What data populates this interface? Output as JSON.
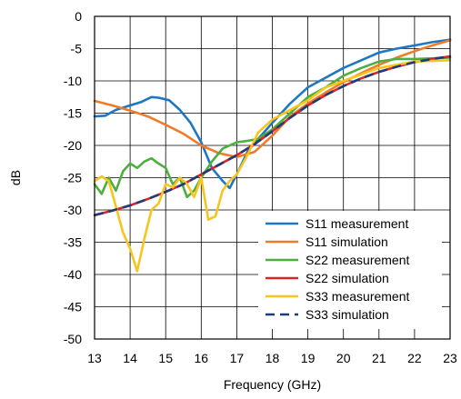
{
  "chart_data": {
    "type": "line",
    "title": "",
    "xlabel": "Frequency (GHz)",
    "ylabel": "dB",
    "xlim": [
      13,
      23
    ],
    "ylim": [
      -50,
      0
    ],
    "xticks": [
      "13",
      "14",
      "15",
      "16",
      "17",
      "18",
      "19",
      "20",
      "21",
      "22",
      "23"
    ],
    "yticks": [
      "0",
      "-5",
      "-10",
      "-15",
      "-20",
      "-25",
      "-30",
      "-35",
      "-40",
      "-45",
      "-50"
    ],
    "grid": true,
    "legend_position": "bottom-right",
    "series": [
      {
        "name": "S11 measurement",
        "color": "#1f77c4",
        "dashed": false,
        "x": [
          13,
          13.3,
          13.6,
          14,
          14.3,
          14.6,
          14.8,
          15.1,
          15.4,
          15.7,
          16.0,
          16.3,
          16.6,
          16.8,
          17.0,
          17.3,
          17.6,
          18.0,
          18.5,
          19.0,
          19.5,
          20.0,
          20.5,
          21.0,
          21.5,
          22.0,
          22.5,
          23.0
        ],
        "y": [
          -15.5,
          -15.4,
          -14.5,
          -13.8,
          -13.3,
          -12.5,
          -12.6,
          -13.0,
          -14.5,
          -16.5,
          -19.5,
          -23.5,
          -25.5,
          -26.6,
          -24.5,
          -21.0,
          -19.0,
          -16.5,
          -13.5,
          -11.0,
          -9.5,
          -8.0,
          -6.8,
          -5.6,
          -5.0,
          -4.5,
          -4.0,
          -3.6
        ]
      },
      {
        "name": "S11 simulation",
        "color": "#f07c2a",
        "dashed": false,
        "x": [
          13,
          13.5,
          14,
          14.5,
          15,
          15.5,
          16,
          16.5,
          17,
          17.5,
          18,
          18.5,
          19,
          19.5,
          20,
          20.5,
          21,
          21.5,
          22,
          22.5,
          23
        ],
        "y": [
          -13.1,
          -13.8,
          -14.6,
          -15.5,
          -16.8,
          -18.2,
          -20.0,
          -21.2,
          -21.8,
          -21.0,
          -18.5,
          -15.5,
          -13.5,
          -11.8,
          -10.2,
          -8.8,
          -7.5,
          -6.4,
          -5.4,
          -4.5,
          -3.7
        ]
      },
      {
        "name": "S22 measurement",
        "color": "#4daf3d",
        "dashed": false,
        "x": [
          13,
          13.2,
          13.4,
          13.6,
          13.8,
          14.0,
          14.2,
          14.4,
          14.6,
          14.8,
          15.0,
          15.2,
          15.4,
          15.6,
          15.8,
          16.0,
          16.3,
          16.6,
          17.0,
          17.3,
          17.6,
          18.0,
          18.5,
          19.0,
          19.5,
          20.0,
          20.5,
          21.0,
          21.5,
          22.0,
          22.5,
          23.0
        ],
        "y": [
          -26.0,
          -27.5,
          -25.0,
          -27.0,
          -24.0,
          -22.8,
          -23.5,
          -22.5,
          -22.0,
          -22.8,
          -23.5,
          -26.0,
          -25.0,
          -28.0,
          -27.0,
          -25.0,
          -22.5,
          -20.5,
          -19.5,
          -19.3,
          -19.0,
          -17.5,
          -15.0,
          -12.5,
          -11.0,
          -9.2,
          -8.0,
          -7.0,
          -6.6,
          -6.6,
          -6.5,
          -6.4
        ]
      },
      {
        "name": "S22 simulation",
        "color": "#d8262b",
        "dashed": false,
        "x": [
          13,
          13.5,
          14,
          14.5,
          15,
          15.5,
          16,
          16.5,
          17,
          17.5,
          18,
          18.5,
          19,
          19.5,
          20,
          20.5,
          21,
          21.5,
          22,
          22.5,
          23
        ],
        "y": [
          -30.8,
          -30.1,
          -29.3,
          -28.3,
          -27.2,
          -26.0,
          -24.5,
          -23.0,
          -21.5,
          -19.8,
          -17.8,
          -15.7,
          -13.8,
          -12.2,
          -10.8,
          -9.6,
          -8.6,
          -7.8,
          -7.1,
          -6.6,
          -6.2
        ]
      },
      {
        "name": "S33 measurement",
        "color": "#f7c51e",
        "dashed": false,
        "x": [
          13,
          13.2,
          13.4,
          13.6,
          13.8,
          14.0,
          14.2,
          14.4,
          14.6,
          14.8,
          15.0,
          15.2,
          15.4,
          15.6,
          15.8,
          16.0,
          16.2,
          16.4,
          16.6,
          16.8,
          17.0,
          17.3,
          17.6,
          18.0,
          18.5,
          19.0,
          19.5,
          20.0,
          20.5,
          21.0,
          21.5,
          22.0,
          22.5,
          23.0
        ],
        "y": [
          -25.5,
          -24.8,
          -25.5,
          -29.5,
          -33.5,
          -36.0,
          -39.5,
          -34.5,
          -30.0,
          -29.0,
          -26.0,
          -26.5,
          -25.0,
          -26.0,
          -28.0,
          -25.0,
          -31.5,
          -31.0,
          -27.0,
          -25.5,
          -24.5,
          -21.5,
          -18.0,
          -16.0,
          -14.5,
          -13.0,
          -11.0,
          -10.0,
          -9.0,
          -8.0,
          -7.5,
          -7.0,
          -6.9,
          -6.8
        ]
      },
      {
        "name": "S33 simulation",
        "color": "#1f3b7a",
        "dashed": true,
        "x": [
          13,
          13.5,
          14,
          14.5,
          15,
          15.5,
          16,
          16.5,
          17,
          17.5,
          18,
          18.5,
          19,
          19.5,
          20,
          20.5,
          21,
          21.5,
          22,
          22.5,
          23
        ],
        "y": [
          -30.8,
          -30.1,
          -29.3,
          -28.3,
          -27.2,
          -26.0,
          -24.5,
          -23.0,
          -21.5,
          -19.8,
          -17.8,
          -15.7,
          -13.8,
          -12.2,
          -10.8,
          -9.6,
          -8.6,
          -7.8,
          -7.1,
          -6.6,
          -6.2
        ]
      }
    ]
  }
}
